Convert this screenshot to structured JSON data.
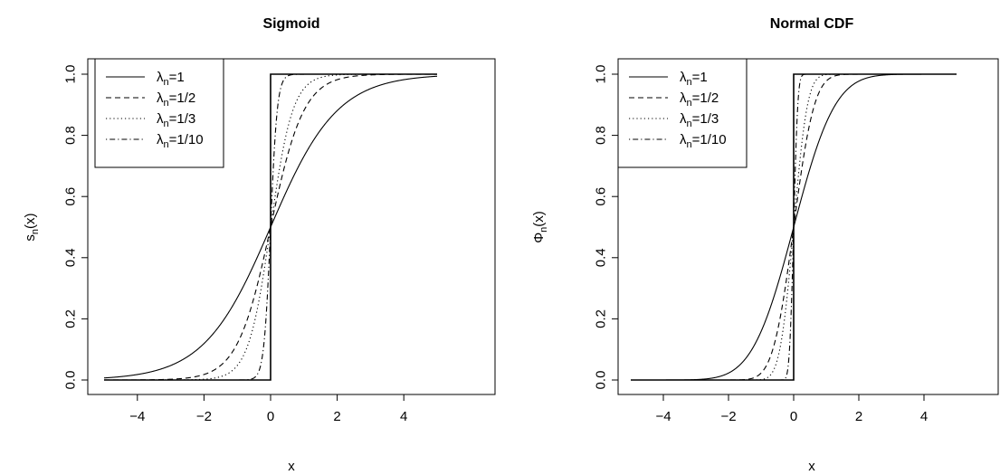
{
  "chart_data": [
    {
      "type": "line",
      "title": "Sigmoid",
      "xlabel": "x",
      "ylabel_base": "s",
      "ylabel_sub": "n",
      "ylabel_rest": "(x)",
      "function": "sigmoid",
      "xlim": [
        -5,
        5
      ],
      "ylim": [
        0,
        1
      ],
      "xticks": [
        -4,
        -2,
        0,
        2,
        4
      ],
      "yticks": [
        0.0,
        0.2,
        0.4,
        0.6,
        0.8,
        1.0
      ],
      "xtick_labels": [
        "−4",
        "−2",
        "0",
        "2",
        "4"
      ],
      "ytick_labels": [
        "0.0",
        "0.2",
        "0.4",
        "0.6",
        "0.8",
        "1.0"
      ],
      "legend_position": "top-left",
      "series": [
        {
          "name": "λn=1",
          "label_greek": "λ",
          "label_sub": "n",
          "label_rest": "=1",
          "lambda": 1,
          "dash": "solid"
        },
        {
          "name": "λn=1/2",
          "label_greek": "λ",
          "label_sub": "n",
          "label_rest": "=1/2",
          "lambda": 0.5,
          "dash": "dashed"
        },
        {
          "name": "λn=1/3",
          "label_greek": "λ",
          "label_sub": "n",
          "label_rest": "=1/3",
          "lambda": 0.3333,
          "dash": "dotted"
        },
        {
          "name": "λn=1/10",
          "label_greek": "λ",
          "label_sub": "n",
          "label_rest": "=1/10",
          "lambda": 0.1,
          "dash": "dotdash"
        }
      ],
      "step_function": {
        "x_split": 0,
        "y_left": 0,
        "y_right": 1
      }
    },
    {
      "type": "line",
      "title": "Normal CDF",
      "xlabel": "x",
      "ylabel_base": "Φ",
      "ylabel_sub": "n",
      "ylabel_rest": "(x)",
      "function": "normal_cdf",
      "xlim": [
        -5,
        5
      ],
      "ylim": [
        0,
        1
      ],
      "xticks": [
        -4,
        -2,
        0,
        2,
        4
      ],
      "yticks": [
        0.0,
        0.2,
        0.4,
        0.6,
        0.8,
        1.0
      ],
      "xtick_labels": [
        "−4",
        "−2",
        "0",
        "2",
        "4"
      ],
      "ytick_labels": [
        "0.0",
        "0.2",
        "0.4",
        "0.6",
        "0.8",
        "1.0"
      ],
      "legend_position": "top-left",
      "series": [
        {
          "name": "λn=1",
          "label_greek": "λ",
          "label_sub": "n",
          "label_rest": "=1",
          "lambda": 1,
          "dash": "solid"
        },
        {
          "name": "λn=1/2",
          "label_greek": "λ",
          "label_sub": "n",
          "label_rest": "=1/2",
          "lambda": 0.5,
          "dash": "dashed"
        },
        {
          "name": "λn=1/3",
          "label_greek": "λ",
          "label_sub": "n",
          "label_rest": "=1/3",
          "lambda": 0.3333,
          "dash": "dotted"
        },
        {
          "name": "λn=1/10",
          "label_greek": "λ",
          "label_sub": "n",
          "label_rest": "=1/10",
          "lambda": 0.1,
          "dash": "dotdash"
        }
      ],
      "step_function": {
        "x_split": 0,
        "y_left": 0,
        "y_right": 1
      }
    }
  ]
}
